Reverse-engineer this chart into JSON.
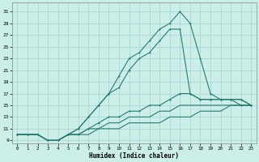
{
  "xlabel": "Humidex (Indice chaleur)",
  "background_color": "#cceee8",
  "grid_color": "#aad8d2",
  "line_color": "#2a7a6e",
  "xlim": [
    -0.5,
    23.5
  ],
  "ylim": [
    8.5,
    32.5
  ],
  "yticks": [
    9,
    11,
    13,
    15,
    17,
    19,
    21,
    23,
    25,
    27,
    29,
    31
  ],
  "xticks": [
    0,
    1,
    2,
    3,
    4,
    5,
    6,
    7,
    8,
    9,
    10,
    11,
    12,
    13,
    14,
    15,
    16,
    17,
    18,
    19,
    20,
    21,
    22,
    23
  ],
  "curve_peak_x": [
    0,
    1,
    2,
    3,
    4,
    5,
    6,
    7,
    8,
    9,
    10,
    11,
    12,
    13,
    14,
    15,
    16,
    17,
    18,
    19,
    20,
    21,
    22,
    23
  ],
  "curve_peak_y": [
    10,
    10,
    10,
    9,
    9,
    10,
    11,
    13,
    15,
    17,
    20,
    23,
    24,
    26,
    28,
    29,
    31,
    29,
    23,
    17,
    16,
    16,
    16,
    15
  ],
  "curve_mid_x": [
    0,
    1,
    2,
    3,
    4,
    5,
    6,
    7,
    8,
    9,
    10,
    11,
    12,
    13,
    14,
    15,
    16,
    17,
    18,
    19,
    20,
    21,
    22,
    23
  ],
  "curve_mid_y": [
    10,
    10,
    10,
    9,
    9,
    10,
    11,
    13,
    15,
    17,
    18,
    21,
    23,
    24,
    26,
    28,
    28,
    17,
    16,
    16,
    16,
    16,
    15,
    15
  ],
  "curve_low1_x": [
    0,
    1,
    2,
    3,
    4,
    5,
    6,
    7,
    8,
    9,
    10,
    11,
    12,
    13,
    14,
    15,
    16,
    17,
    18,
    19,
    20,
    21,
    22,
    23
  ],
  "curve_low1_y": [
    10,
    10,
    10,
    9,
    9,
    10,
    10,
    11,
    12,
    13,
    13,
    14,
    14,
    15,
    15,
    16,
    17,
    17,
    16,
    16,
    16,
    16,
    16,
    15
  ],
  "curve_low2_x": [
    0,
    1,
    2,
    3,
    4,
    5,
    6,
    7,
    8,
    9,
    10,
    11,
    12,
    13,
    14,
    15,
    16,
    17,
    18,
    19,
    20,
    21,
    22,
    23
  ],
  "curve_low2_y": [
    10,
    10,
    10,
    9,
    9,
    10,
    10,
    11,
    11,
    12,
    12,
    13,
    13,
    13,
    14,
    14,
    15,
    15,
    15,
    15,
    15,
    15,
    15,
    15
  ],
  "curve_low3_x": [
    0,
    1,
    2,
    3,
    4,
    5,
    6,
    7,
    8,
    9,
    10,
    11,
    12,
    13,
    14,
    15,
    16,
    17,
    18,
    19,
    20,
    21,
    22,
    23
  ],
  "curve_low3_y": [
    10,
    10,
    10,
    9,
    9,
    10,
    10,
    10,
    11,
    11,
    11,
    12,
    12,
    12,
    12,
    13,
    13,
    13,
    14,
    14,
    14,
    15,
    15,
    15
  ]
}
